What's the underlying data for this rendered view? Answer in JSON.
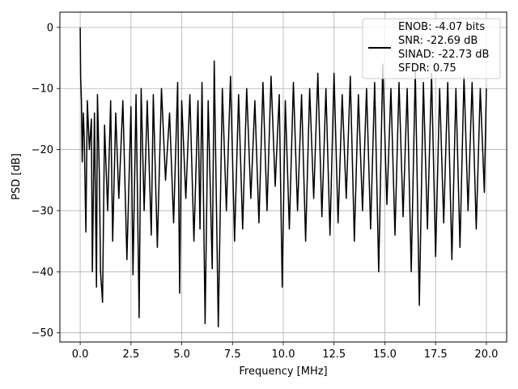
{
  "chart_data": {
    "type": "line",
    "xlabel": "Frequency [MHz]",
    "ylabel": "PSD [dB]",
    "xlim": [
      -1.0,
      21.0
    ],
    "ylim": [
      -51.5,
      2.5
    ],
    "xticks": [
      0.0,
      2.5,
      5.0,
      7.5,
      10.0,
      12.5,
      15.0,
      17.5,
      20.0
    ],
    "xtick_labels": [
      "0.0",
      "2.5",
      "5.0",
      "7.5",
      "10.0",
      "12.5",
      "15.0",
      "17.5",
      "20.0"
    ],
    "yticks": [
      0,
      -10,
      -20,
      -30,
      -40,
      -50
    ],
    "ytick_labels": [
      "0",
      "−10",
      "−20",
      "−30",
      "−40",
      "−50"
    ],
    "grid": true,
    "legend_position": "top-right",
    "colors": {
      "series": "#000000",
      "grid": "#b0b0b0"
    },
    "series": [
      {
        "name": "ENOB: -4.07 bits\nSNR: -22.69 dB\nSINAD: -22.73 dB\nSFDR: 0.75",
        "points": [
          [
            0.0,
            0.0
          ],
          [
            0.02,
            -8.0
          ],
          [
            0.06,
            -12.0
          ],
          [
            0.1,
            -22.0
          ],
          [
            0.15,
            -14.0
          ],
          [
            0.2,
            -18.0
          ],
          [
            0.28,
            -33.5
          ],
          [
            0.35,
            -12.0
          ],
          [
            0.45,
            -20.0
          ],
          [
            0.55,
            -15.0
          ],
          [
            0.6,
            -40.0
          ],
          [
            0.7,
            -14.0
          ],
          [
            0.8,
            -42.5
          ],
          [
            0.85,
            -11.0
          ],
          [
            0.95,
            -25.0
          ],
          [
            1.0,
            -40.0
          ],
          [
            1.1,
            -45.0
          ],
          [
            1.2,
            -16.0
          ],
          [
            1.35,
            -30.0
          ],
          [
            1.5,
            -12.0
          ],
          [
            1.6,
            -35.0
          ],
          [
            1.75,
            -14.0
          ],
          [
            1.9,
            -28.0
          ],
          [
            2.1,
            -12.0
          ],
          [
            2.3,
            -38.0
          ],
          [
            2.5,
            -13.0
          ],
          [
            2.6,
            -40.5
          ],
          [
            2.75,
            -11.0
          ],
          [
            2.9,
            -47.5
          ],
          [
            3.0,
            -10.0
          ],
          [
            3.15,
            -30.0
          ],
          [
            3.3,
            -12.0
          ],
          [
            3.5,
            -34.0
          ],
          [
            3.6,
            -11.0
          ],
          [
            3.8,
            -36.0
          ],
          [
            4.0,
            -10.0
          ],
          [
            4.2,
            -25.0
          ],
          [
            4.4,
            -14.0
          ],
          [
            4.6,
            -32.0
          ],
          [
            4.8,
            -9.0
          ],
          [
            4.9,
            -43.5
          ],
          [
            5.0,
            -12.0
          ],
          [
            5.2,
            -28.0
          ],
          [
            5.4,
            -11.0
          ],
          [
            5.6,
            -35.0
          ],
          [
            5.8,
            -12.0
          ],
          [
            5.9,
            -33.0
          ],
          [
            6.0,
            -9.0
          ],
          [
            6.15,
            -48.5
          ],
          [
            6.3,
            -12.0
          ],
          [
            6.5,
            -39.5
          ],
          [
            6.6,
            -5.5
          ],
          [
            6.8,
            -49.0
          ],
          [
            7.0,
            -10.0
          ],
          [
            7.2,
            -30.0
          ],
          [
            7.4,
            -8.0
          ],
          [
            7.6,
            -35.0
          ],
          [
            7.8,
            -11.0
          ],
          [
            8.0,
            -33.0
          ],
          [
            8.2,
            -10.0
          ],
          [
            8.4,
            -28.0
          ],
          [
            8.6,
            -12.0
          ],
          [
            8.8,
            -32.0
          ],
          [
            9.0,
            -9.0
          ],
          [
            9.2,
            -30.0
          ],
          [
            9.4,
            -8.0
          ],
          [
            9.6,
            -26.0
          ],
          [
            9.8,
            -11.0
          ],
          [
            9.95,
            -42.5
          ],
          [
            10.1,
            -12.0
          ],
          [
            10.3,
            -33.0
          ],
          [
            10.5,
            -9.0
          ],
          [
            10.7,
            -30.0
          ],
          [
            10.9,
            -11.0
          ],
          [
            11.1,
            -35.0
          ],
          [
            11.3,
            -10.0
          ],
          [
            11.5,
            -28.0
          ],
          [
            11.7,
            -7.5
          ],
          [
            11.9,
            -31.0
          ],
          [
            12.1,
            -10.0
          ],
          [
            12.3,
            -34.0
          ],
          [
            12.5,
            -7.5
          ],
          [
            12.7,
            -32.0
          ],
          [
            12.9,
            -11.0
          ],
          [
            13.1,
            -28.0
          ],
          [
            13.3,
            -8.0
          ],
          [
            13.5,
            -35.0
          ],
          [
            13.7,
            -11.0
          ],
          [
            13.9,
            -30.0
          ],
          [
            14.1,
            -10.0
          ],
          [
            14.3,
            -33.0
          ],
          [
            14.5,
            -9.0
          ],
          [
            14.7,
            -40.0
          ],
          [
            14.9,
            -6.0
          ],
          [
            15.1,
            -29.0
          ],
          [
            15.3,
            -10.0
          ],
          [
            15.5,
            -34.0
          ],
          [
            15.7,
            -9.0
          ],
          [
            15.9,
            -31.0
          ],
          [
            16.1,
            -10.0
          ],
          [
            16.3,
            -40.0
          ],
          [
            16.5,
            -7.0
          ],
          [
            16.7,
            -45.5
          ],
          [
            16.9,
            -9.0
          ],
          [
            17.1,
            -33.0
          ],
          [
            17.3,
            -7.5
          ],
          [
            17.5,
            -37.5
          ],
          [
            17.7,
            -10.0
          ],
          [
            17.9,
            -32.0
          ],
          [
            18.1,
            -9.0
          ],
          [
            18.3,
            -38.0
          ],
          [
            18.5,
            -10.0
          ],
          [
            18.7,
            -36.0
          ],
          [
            18.9,
            -8.0
          ],
          [
            19.1,
            -30.0
          ],
          [
            19.3,
            -9.0
          ],
          [
            19.5,
            -33.0
          ],
          [
            19.7,
            -10.0
          ],
          [
            19.9,
            -27.0
          ],
          [
            20.0,
            -10.0
          ]
        ]
      }
    ],
    "legend": {
      "lines": [
        "ENOB: -4.07 bits",
        "SNR: -22.69 dB",
        "SINAD: -22.73 dB",
        "SFDR: 0.75"
      ]
    }
  }
}
